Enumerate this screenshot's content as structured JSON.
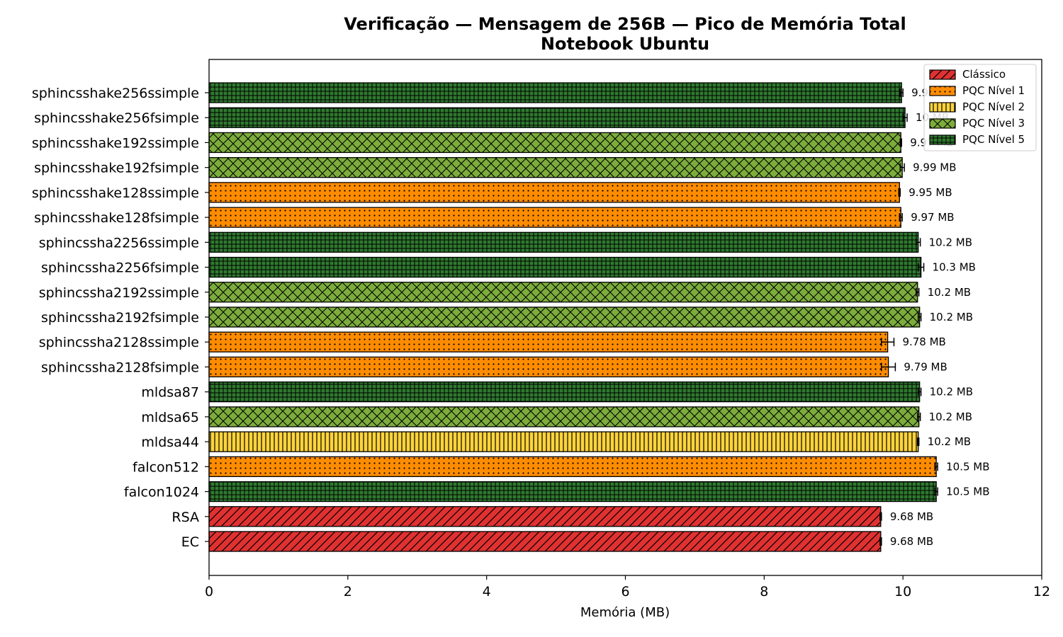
{
  "chart_data": {
    "type": "bar",
    "orientation": "horizontal",
    "title": "Verificação — Mensagem de 256B — Pico de Memória Total",
    "subtitle": "Notebook Ubuntu",
    "xlabel": "Memória (MB)",
    "ylabel": "",
    "xlim": [
      0,
      12
    ],
    "xticks": [
      "0",
      "2",
      "4",
      "6",
      "8",
      "10",
      "12"
    ],
    "grid": false,
    "legend_position": "top-right",
    "legend": [
      {
        "name": "Clássico",
        "color": "#e03131",
        "pattern": "diagonal"
      },
      {
        "name": "PQC Nível 1",
        "color": "#ff8c00",
        "pattern": "dots"
      },
      {
        "name": "PQC Nível 2",
        "color": "#ffd43b",
        "pattern": "vertical"
      },
      {
        "name": "PQC Nível 3",
        "color": "#7cad3c",
        "pattern": "crosshatch"
      },
      {
        "name": "PQC Nível 5",
        "color": "#2f7a2f",
        "pattern": "grid"
      }
    ],
    "bars": [
      {
        "label": "sphincsshake256ssimple",
        "value": 9.98,
        "error": 0.02,
        "text": "9.98 MB",
        "level": 4
      },
      {
        "label": "sphincsshake256fsimple",
        "value": 10.03,
        "error": 0.03,
        "text": "10 MB",
        "level": 4
      },
      {
        "label": "sphincsshake192ssimple",
        "value": 9.97,
        "error": 0.01,
        "text": "9.97 MB",
        "level": 3
      },
      {
        "label": "sphincsshake192fsimple",
        "value": 9.99,
        "error": 0.03,
        "text": "9.99 MB",
        "level": 3
      },
      {
        "label": "sphincsshake128ssimple",
        "value": 9.95,
        "error": 0.01,
        "text": "9.95 MB",
        "level": 1
      },
      {
        "label": "sphincsshake128fsimple",
        "value": 9.97,
        "error": 0.02,
        "text": "9.97 MB",
        "level": 1
      },
      {
        "label": "sphincssha2256ssimple",
        "value": 10.22,
        "error": 0.03,
        "text": "10.2 MB",
        "level": 4
      },
      {
        "label": "sphincssha2256fsimple",
        "value": 10.26,
        "error": 0.04,
        "text": "10.3 MB",
        "level": 4
      },
      {
        "label": "sphincssha2192ssimple",
        "value": 10.21,
        "error": 0.02,
        "text": "10.2 MB",
        "level": 3
      },
      {
        "label": "sphincssha2192fsimple",
        "value": 10.24,
        "error": 0.02,
        "text": "10.2 MB",
        "level": 3
      },
      {
        "label": "sphincssha2128ssimple",
        "value": 9.78,
        "error": 0.09,
        "text": "9.78 MB",
        "level": 1
      },
      {
        "label": "sphincssha2128fsimple",
        "value": 9.79,
        "error": 0.1,
        "text": "9.79 MB",
        "level": 1
      },
      {
        "label": "mldsa87",
        "value": 10.24,
        "error": 0.02,
        "text": "10.2 MB",
        "level": 4
      },
      {
        "label": "mldsa65",
        "value": 10.23,
        "error": 0.02,
        "text": "10.2 MB",
        "level": 3
      },
      {
        "label": "mldsa44",
        "value": 10.22,
        "error": 0.01,
        "text": "10.2 MB",
        "level": 2
      },
      {
        "label": "falcon512",
        "value": 10.48,
        "error": 0.02,
        "text": "10.5 MB",
        "level": 1
      },
      {
        "label": "falcon1024",
        "value": 10.48,
        "error": 0.02,
        "text": "10.5 MB",
        "level": 4
      },
      {
        "label": "RSA",
        "value": 9.68,
        "error": 0.01,
        "text": "9.68 MB",
        "level": 0
      },
      {
        "label": "EC",
        "value": 9.68,
        "error": 0.01,
        "text": "9.68 MB",
        "level": 0
      }
    ]
  }
}
